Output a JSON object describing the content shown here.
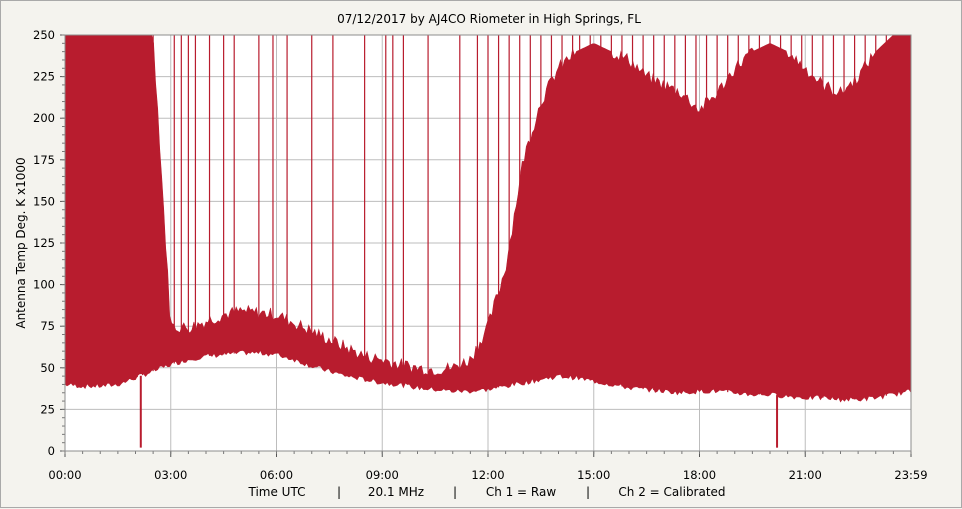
{
  "chart_data": {
    "type": "area",
    "title": "07/12/2017  by  AJ4CO Riometer  in  High Springs, FL",
    "ylabel": "Antenna Temp Deg. K x1000",
    "xlabel": "Time UTC",
    "footer": {
      "time": "Time UTC",
      "freq": "20.1 MHz",
      "ch1": "Ch 1 = Raw",
      "ch2": "Ch 2 = Calibrated",
      "sep": "|"
    },
    "ylim": [
      0,
      250
    ],
    "xlim_hours": [
      0,
      24
    ],
    "y_ticks": [
      "0",
      "25",
      "50",
      "75",
      "100",
      "125",
      "150",
      "175",
      "200",
      "225",
      "250"
    ],
    "x_ticks": [
      "00:00",
      "03:00",
      "06:00",
      "09:00",
      "12:00",
      "15:00",
      "18:00",
      "21:00",
      "23:59"
    ],
    "grid": true,
    "series_color": "#b81c2e",
    "series": [
      {
        "name": "Ch 1 = Raw",
        "envelope_hours": [
          0,
          0.5,
          1,
          1.5,
          2,
          2.5,
          3,
          3.5,
          4,
          4.5,
          5,
          5.5,
          6,
          6.5,
          7,
          7.5,
          8,
          8.5,
          9,
          9.5,
          10,
          10.5,
          11,
          11.5,
          12,
          12.5,
          13,
          13.5,
          14,
          14.5,
          15,
          15.5,
          16,
          16.5,
          17,
          17.5,
          18,
          18.5,
          19,
          19.5,
          20,
          20.5,
          21,
          21.5,
          22,
          22.5,
          23,
          23.5,
          24
        ],
        "lower": [
          40,
          39,
          39,
          40,
          44,
          48,
          52,
          55,
          57,
          58,
          59,
          59,
          58,
          55,
          51,
          48,
          45,
          43,
          41,
          40,
          38,
          37,
          36,
          36,
          37,
          39,
          41,
          43,
          45,
          44,
          42,
          40,
          38,
          37,
          36,
          35,
          36,
          36,
          35,
          34,
          34,
          33,
          32,
          32,
          31,
          31,
          32,
          34,
          36
        ],
        "upper": [
          250,
          250,
          250,
          250,
          250,
          250,
          75,
          74,
          78,
          82,
          84,
          83,
          82,
          77,
          72,
          67,
          62,
          57,
          55,
          52,
          50,
          49,
          50,
          55,
          75,
          110,
          175,
          210,
          230,
          240,
          245,
          240,
          235,
          225,
          220,
          215,
          205,
          215,
          230,
          240,
          245,
          240,
          230,
          220,
          215,
          225,
          240,
          250,
          250
        ]
      }
    ],
    "spikes_hours": [
      0.1,
      0.25,
      0.4,
      1.3,
      1.6,
      2.05,
      2.2,
      2.5,
      3.1,
      3.3,
      3.5,
      3.7,
      4.1,
      4.5,
      4.8,
      5.5,
      5.9,
      6.3,
      7.0,
      7.6,
      8.5,
      9.1,
      9.3,
      9.6,
      10.3,
      11.2,
      11.7,
      12.0,
      12.3,
      12.6,
      12.9,
      13.2,
      13.5,
      13.8,
      14.1,
      14.4,
      14.6,
      14.9,
      15.2,
      15.5,
      15.8,
      16.1,
      16.4,
      16.7,
      17.0,
      17.3,
      17.6,
      17.9,
      18.2,
      18.5,
      18.8,
      19.1,
      19.4,
      19.7,
      20.0,
      20.3,
      20.6,
      20.9,
      21.2,
      21.5,
      21.8,
      22.1,
      22.4,
      22.7,
      23.0,
      23.3,
      23.6
    ],
    "dips_hours": [
      2.15,
      20.2
    ]
  }
}
